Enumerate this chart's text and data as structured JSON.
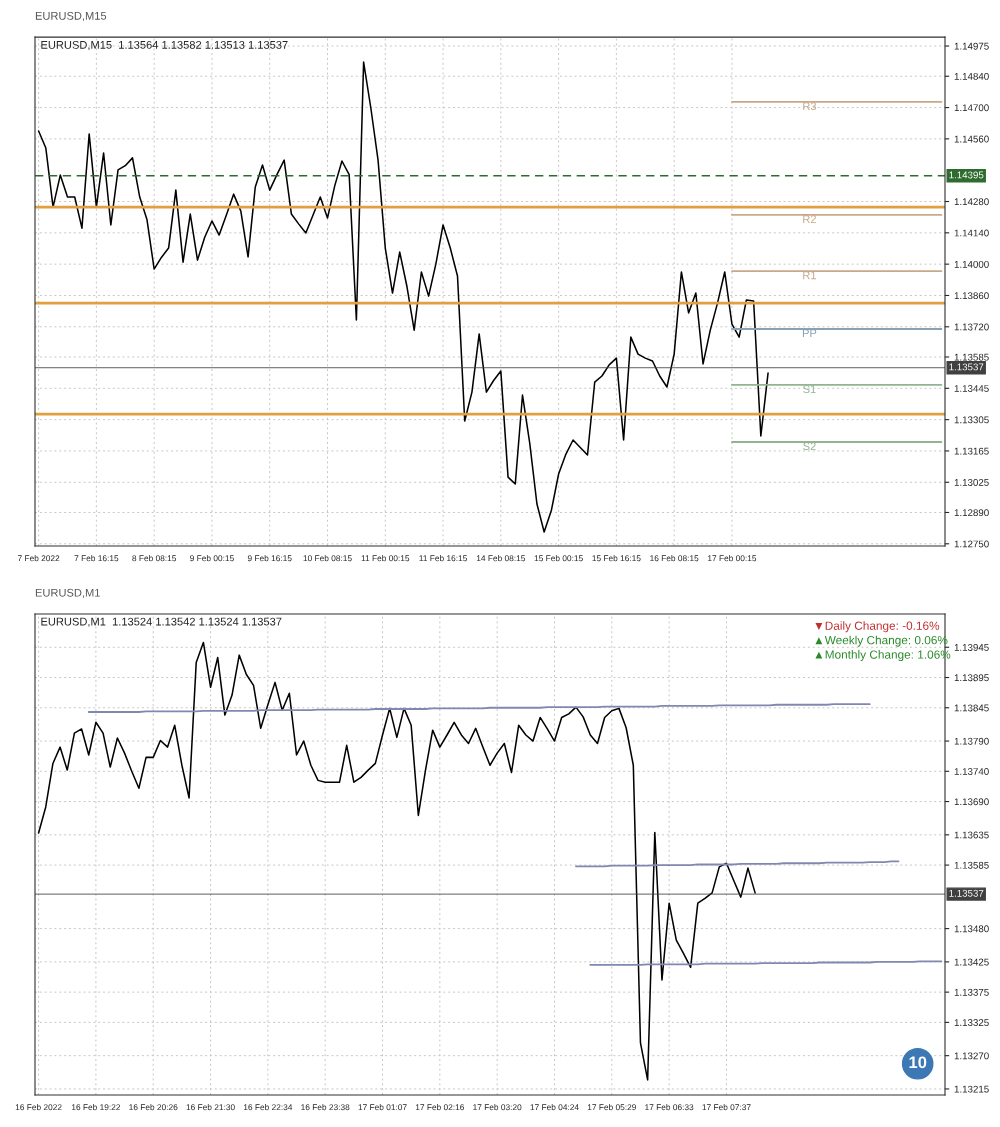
{
  "chart_data": [
    {
      "type": "line",
      "title": "EURUSD,M15  1.13564 1.13582 1.13513 1.13537",
      "subtitle": "EURUSD,M15",
      "categories": [
        "7 Feb 2022",
        null,
        null,
        null,
        null,
        null,
        null,
        null,
        "7 Feb 16:15",
        null,
        null,
        null,
        null,
        null,
        null,
        null,
        "8 Feb 08:15",
        null,
        null,
        null,
        null,
        null,
        null,
        null,
        "9 Feb 00:15",
        null,
        null,
        null,
        null,
        null,
        null,
        null,
        "9 Feb 16:15",
        null,
        null,
        null,
        null,
        null,
        null,
        null,
        "10 Feb 08:15",
        null,
        null,
        null,
        null,
        null,
        null,
        null,
        "11 Feb 00:15",
        null,
        null,
        null,
        null,
        null,
        null,
        null,
        "11 Feb 16:15",
        null,
        null,
        null,
        null,
        null,
        null,
        null,
        "14 Feb 08:15",
        null,
        null,
        null,
        null,
        null,
        null,
        null,
        "15 Feb 00:15",
        null,
        null,
        null,
        null,
        null,
        null,
        null,
        "15 Feb 16:15",
        null,
        null,
        null,
        null,
        null,
        null,
        null,
        "16 Feb 08:15",
        null,
        null,
        null,
        null,
        null,
        null,
        null,
        "17 Feb 00:15",
        null,
        null,
        null,
        null,
        null,
        null,
        null,
        null,
        null,
        null,
        null,
        null,
        null,
        null,
        null,
        null,
        null,
        null,
        null,
        null,
        null,
        null,
        null,
        null,
        null,
        null,
        null,
        null,
        null
      ],
      "ylim": [
        1.1274,
        1.15015
      ],
      "yticks": [
        {
          "value": 1.14975,
          "label": "1.14975"
        },
        {
          "value": 1.1484,
          "label": "1.14840"
        },
        {
          "value": 1.147,
          "label": "1.14700"
        },
        {
          "value": 1.1456,
          "label": "1.14560"
        },
        {
          "value": 1.1428,
          "label": "1.14280"
        },
        {
          "value": 1.1414,
          "label": "1.14140"
        },
        {
          "value": 1.14,
          "label": "1.14000"
        },
        {
          "value": 1.1386,
          "label": "1.13860"
        },
        {
          "value": 1.1372,
          "label": "1.13720"
        },
        {
          "value": 1.13585,
          "label": "1.13585"
        },
        {
          "value": 1.13445,
          "label": "1.13445"
        },
        {
          "value": 1.13305,
          "label": "1.13305"
        },
        {
          "value": 1.13165,
          "label": "1.13165"
        },
        {
          "value": 1.13025,
          "label": "1.13025"
        },
        {
          "value": 1.1289,
          "label": "1.12890"
        },
        {
          "value": 1.1275,
          "label": "1.12750"
        }
      ],
      "grid": true,
      "series": [
        {
          "color": "#000000",
          "values": [
            1.14595,
            1.14519,
            1.14255,
            1.14398,
            1.143,
            1.143,
            1.14161,
            1.14582,
            1.14255,
            1.14497,
            1.14175,
            1.14421,
            1.1444,
            1.14475,
            1.143,
            1.142,
            1.13978,
            1.1403,
            1.14072,
            1.14331,
            1.14009,
            1.14224,
            1.14018,
            1.1412,
            1.14193,
            1.1413,
            1.1422,
            1.14313,
            1.14237,
            1.14032,
            1.14345,
            1.14443,
            1.14331,
            1.144,
            1.14465,
            1.14224,
            1.1418,
            1.14139,
            1.1422,
            1.143,
            1.14206,
            1.1435,
            1.14461,
            1.144,
            1.1375,
            1.14903,
            1.14698,
            1.14465,
            1.14072,
            1.13871,
            1.14054,
            1.139,
            1.13705,
            1.13965,
            1.13857,
            1.14,
            1.14175,
            1.14072,
            1.13947,
            1.13299,
            1.13428,
            1.13688,
            1.13428,
            1.1348,
            1.13522,
            1.13048,
            1.13017,
            1.13415,
            1.132,
            1.12928,
            1.12803,
            1.129,
            1.13062,
            1.1315,
            1.13214,
            1.1318,
            1.13147,
            1.13473,
            1.135,
            1.1355,
            1.1358,
            1.13214,
            1.13674,
            1.13598,
            1.1358,
            1.13567,
            1.135,
            1.13451,
            1.13598,
            1.13965,
            1.13782,
            1.13871,
            1.13554,
            1.13705,
            1.13826,
            1.13965,
            1.13732,
            1.13674,
            1.1384,
            1.13835,
            1.13232,
            1.13513,
            null,
            null,
            null,
            null,
            null,
            null,
            null,
            null,
            null,
            null,
            null,
            null,
            null,
            null,
            null,
            null,
            null,
            null,
            null,
            null,
            null,
            null,
            null,
            null
          ]
        },
        {
          "name": "R3",
          "color": "#c9a88a",
          "values": [
            null,
            null,
            null,
            null,
            null,
            null,
            null,
            null,
            null,
            null,
            null,
            null,
            null,
            null,
            null,
            null,
            null,
            null,
            null,
            null,
            null,
            null,
            null,
            null,
            null,
            null,
            null,
            null,
            null,
            null,
            null,
            null,
            null,
            null,
            null,
            null,
            null,
            null,
            null,
            null,
            null,
            null,
            null,
            null,
            null,
            null,
            null,
            null,
            null,
            null,
            null,
            null,
            null,
            null,
            null,
            null,
            null,
            null,
            null,
            null,
            null,
            null,
            null,
            null,
            null,
            null,
            null,
            null,
            null,
            null,
            null,
            null,
            null,
            null,
            null,
            null,
            null,
            null,
            null,
            null,
            null,
            null,
            null,
            null,
            null,
            null,
            null,
            null,
            null,
            null,
            null,
            null,
            null,
            null,
            null,
            null,
            1.14725,
            1.14725,
            1.14725,
            1.14725,
            1.14725,
            1.14725,
            1.14725,
            1.14725,
            1.14725,
            1.14725,
            1.14725,
            1.14725,
            1.14725,
            1.14725,
            1.14725,
            1.14725,
            1.14725,
            1.14725,
            1.14725,
            1.14725,
            1.14725,
            1.14725,
            1.14725,
            1.14725,
            1.14725,
            1.14725,
            1.14725,
            1.14725,
            1.14725,
            1.14725
          ]
        },
        {
          "name": "R2",
          "color": "#c9a88a",
          "values": [
            null,
            null,
            null,
            null,
            null,
            null,
            null,
            null,
            null,
            null,
            null,
            null,
            null,
            null,
            null,
            null,
            null,
            null,
            null,
            null,
            null,
            null,
            null,
            null,
            null,
            null,
            null,
            null,
            null,
            null,
            null,
            null,
            null,
            null,
            null,
            null,
            null,
            null,
            null,
            null,
            null,
            null,
            null,
            null,
            null,
            null,
            null,
            null,
            null,
            null,
            null,
            null,
            null,
            null,
            null,
            null,
            null,
            null,
            null,
            null,
            null,
            null,
            null,
            null,
            null,
            null,
            null,
            null,
            null,
            null,
            null,
            null,
            null,
            null,
            null,
            null,
            null,
            null,
            null,
            null,
            null,
            null,
            null,
            null,
            null,
            null,
            null,
            null,
            null,
            null,
            null,
            null,
            null,
            null,
            null,
            null,
            1.1422,
            1.1422,
            1.1422,
            1.1422,
            1.1422,
            1.1422,
            1.1422,
            1.1422,
            1.1422,
            1.1422,
            1.1422,
            1.1422,
            1.1422,
            1.1422,
            1.1422,
            1.1422,
            1.1422,
            1.1422,
            1.1422,
            1.1422,
            1.1422,
            1.1422,
            1.1422,
            1.1422,
            1.1422,
            1.1422,
            1.1422,
            1.1422,
            1.1422,
            1.1422
          ]
        },
        {
          "name": "R1",
          "color": "#c9a88a",
          "values": [
            null,
            null,
            null,
            null,
            null,
            null,
            null,
            null,
            null,
            null,
            null,
            null,
            null,
            null,
            null,
            null,
            null,
            null,
            null,
            null,
            null,
            null,
            null,
            null,
            null,
            null,
            null,
            null,
            null,
            null,
            null,
            null,
            null,
            null,
            null,
            null,
            null,
            null,
            null,
            null,
            null,
            null,
            null,
            null,
            null,
            null,
            null,
            null,
            null,
            null,
            null,
            null,
            null,
            null,
            null,
            null,
            null,
            null,
            null,
            null,
            null,
            null,
            null,
            null,
            null,
            null,
            null,
            null,
            null,
            null,
            null,
            null,
            null,
            null,
            null,
            null,
            null,
            null,
            null,
            null,
            null,
            null,
            null,
            null,
            null,
            null,
            null,
            null,
            null,
            null,
            null,
            null,
            null,
            null,
            null,
            null,
            1.13969,
            1.13969,
            1.13969,
            1.13969,
            1.13969,
            1.13969,
            1.13969,
            1.13969,
            1.13969,
            1.13969,
            1.13969,
            1.13969,
            1.13969,
            1.13969,
            1.13969,
            1.13969,
            1.13969,
            1.13969,
            1.13969,
            1.13969,
            1.13969,
            1.13969,
            1.13969,
            1.13969,
            1.13969,
            1.13969,
            1.13969,
            1.13969,
            1.13969,
            1.13969
          ]
        },
        {
          "name": "PP",
          "color": "#8aa0b4",
          "values": [
            null,
            null,
            null,
            null,
            null,
            null,
            null,
            null,
            null,
            null,
            null,
            null,
            null,
            null,
            null,
            null,
            null,
            null,
            null,
            null,
            null,
            null,
            null,
            null,
            null,
            null,
            null,
            null,
            null,
            null,
            null,
            null,
            null,
            null,
            null,
            null,
            null,
            null,
            null,
            null,
            null,
            null,
            null,
            null,
            null,
            null,
            null,
            null,
            null,
            null,
            null,
            null,
            null,
            null,
            null,
            null,
            null,
            null,
            null,
            null,
            null,
            null,
            null,
            null,
            null,
            null,
            null,
            null,
            null,
            null,
            null,
            null,
            null,
            null,
            null,
            null,
            null,
            null,
            null,
            null,
            null,
            null,
            null,
            null,
            null,
            null,
            null,
            null,
            null,
            null,
            null,
            null,
            null,
            null,
            null,
            null,
            1.1371,
            1.1371,
            1.1371,
            1.1371,
            1.1371,
            1.1371,
            1.1371,
            1.1371,
            1.1371,
            1.1371,
            1.1371,
            1.1371,
            1.1371,
            1.1371,
            1.1371,
            1.1371,
            1.1371,
            1.1371,
            1.1371,
            1.1371,
            1.1371,
            1.1371,
            1.1371,
            1.1371,
            1.1371,
            1.1371,
            1.1371,
            1.1371,
            1.1371,
            1.1371
          ]
        },
        {
          "name": "S1",
          "color": "#93b393",
          "values": [
            null,
            null,
            null,
            null,
            null,
            null,
            null,
            null,
            null,
            null,
            null,
            null,
            null,
            null,
            null,
            null,
            null,
            null,
            null,
            null,
            null,
            null,
            null,
            null,
            null,
            null,
            null,
            null,
            null,
            null,
            null,
            null,
            null,
            null,
            null,
            null,
            null,
            null,
            null,
            null,
            null,
            null,
            null,
            null,
            null,
            null,
            null,
            null,
            null,
            null,
            null,
            null,
            null,
            null,
            null,
            null,
            null,
            null,
            null,
            null,
            null,
            null,
            null,
            null,
            null,
            null,
            null,
            null,
            null,
            null,
            null,
            null,
            null,
            null,
            null,
            null,
            null,
            null,
            null,
            null,
            null,
            null,
            null,
            null,
            null,
            null,
            null,
            null,
            null,
            null,
            null,
            null,
            null,
            null,
            null,
            null,
            1.1346,
            1.1346,
            1.1346,
            1.1346,
            1.1346,
            1.1346,
            1.1346,
            1.1346,
            1.1346,
            1.1346,
            1.1346,
            1.1346,
            1.1346,
            1.1346,
            1.1346,
            1.1346,
            1.1346,
            1.1346,
            1.1346,
            1.1346,
            1.1346,
            1.1346,
            1.1346,
            1.1346,
            1.1346,
            1.1346,
            1.1346,
            1.1346,
            1.1346,
            1.1346
          ]
        },
        {
          "name": "S2",
          "color": "#93b393",
          "values": [
            null,
            null,
            null,
            null,
            null,
            null,
            null,
            null,
            null,
            null,
            null,
            null,
            null,
            null,
            null,
            null,
            null,
            null,
            null,
            null,
            null,
            null,
            null,
            null,
            null,
            null,
            null,
            null,
            null,
            null,
            null,
            null,
            null,
            null,
            null,
            null,
            null,
            null,
            null,
            null,
            null,
            null,
            null,
            null,
            null,
            null,
            null,
            null,
            null,
            null,
            null,
            null,
            null,
            null,
            null,
            null,
            null,
            null,
            null,
            null,
            null,
            null,
            null,
            null,
            null,
            null,
            null,
            null,
            null,
            null,
            null,
            null,
            null,
            null,
            null,
            null,
            null,
            null,
            null,
            null,
            null,
            null,
            null,
            null,
            null,
            null,
            null,
            null,
            null,
            null,
            null,
            null,
            null,
            null,
            null,
            null,
            1.13205,
            1.13205,
            1.13205,
            1.13205,
            1.13205,
            1.13205,
            1.13205,
            1.13205,
            1.13205,
            1.13205,
            1.13205,
            1.13205,
            1.13205,
            1.13205,
            1.13205,
            1.13205,
            1.13205,
            1.13205,
            1.13205,
            1.13205,
            1.13205,
            1.13205,
            1.13205,
            1.13205,
            1.13205,
            1.13205,
            1.13205,
            1.13205,
            1.13205,
            1.13205
          ]
        }
      ],
      "ref_lines": [
        {
          "axis": "y",
          "value": 1.14255,
          "color": "#e0a040"
        },
        {
          "axis": "y",
          "value": 1.13826,
          "color": "#e0a040"
        },
        {
          "axis": "y",
          "value": 1.1333,
          "color": "#e0a040"
        },
        {
          "axis": "y",
          "value": 1.14395,
          "label": "1.14395",
          "color": "#2e6b2e",
          "line_style": "dashed"
        },
        {
          "axis": "y",
          "value": 1.13537,
          "label": "1.13537",
          "color": "#404040"
        }
      ]
    },
    {
      "type": "line",
      "title": "EURUSD,M1  1.13524 1.13542 1.13524 1.13537",
      "subtitle": "EURUSD,M1",
      "categories": [
        "16 Feb 2022",
        null,
        null,
        null,
        null,
        null,
        null,
        null,
        "16 Feb 19:22",
        null,
        null,
        null,
        null,
        null,
        null,
        null,
        "16 Feb 20:26",
        null,
        null,
        null,
        null,
        null,
        null,
        null,
        "16 Feb 21:30",
        null,
        null,
        null,
        null,
        null,
        null,
        null,
        "16 Feb 22:34",
        null,
        null,
        null,
        null,
        null,
        null,
        null,
        "16 Feb 23:38",
        null,
        null,
        null,
        null,
        null,
        null,
        null,
        "17 Feb 01:07",
        null,
        null,
        null,
        null,
        null,
        null,
        null,
        "17 Feb 02:16",
        null,
        null,
        null,
        null,
        null,
        null,
        null,
        "17 Feb 03:20",
        null,
        null,
        null,
        null,
        null,
        null,
        null,
        "17 Feb 04:24",
        null,
        null,
        null,
        null,
        null,
        null,
        null,
        "17 Feb 05:29",
        null,
        null,
        null,
        null,
        null,
        null,
        null,
        "17 Feb 06:33",
        null,
        null,
        null,
        null,
        null,
        null,
        null,
        "17 Feb 07:37",
        null,
        null,
        null,
        null,
        null,
        null,
        null,
        null,
        null,
        null,
        null,
        null,
        null,
        null,
        null,
        null,
        null,
        null,
        null,
        null,
        null,
        null,
        null,
        null,
        null,
        null,
        null,
        null,
        null,
        null
      ],
      "ylim": [
        1.13205,
        1.14
      ],
      "yticks": [
        {
          "value": 1.13945,
          "label": "1.13945"
        },
        {
          "value": 1.13895,
          "label": "1.13895"
        },
        {
          "value": 1.13845,
          "label": "1.13845"
        },
        {
          "value": 1.1379,
          "label": "1.13790"
        },
        {
          "value": 1.1374,
          "label": "1.13740"
        },
        {
          "value": 1.1369,
          "label": "1.13690"
        },
        {
          "value": 1.13635,
          "label": "1.13635"
        },
        {
          "value": 1.13585,
          "label": "1.13585"
        },
        {
          "value": 1.1348,
          "label": "1.13480"
        },
        {
          "value": 1.13425,
          "label": "1.13425"
        },
        {
          "value": 1.13375,
          "label": "1.13375"
        },
        {
          "value": 1.13325,
          "label": "1.13325"
        },
        {
          "value": 1.1327,
          "label": "1.13270"
        },
        {
          "value": 1.13215,
          "label": "1.13215"
        }
      ],
      "grid": true,
      "series": [
        {
          "color": "#000000",
          "values": [
            1.13638,
            1.13681,
            1.13753,
            1.1378,
            1.13742,
            1.13803,
            1.1381,
            1.13767,
            1.13821,
            1.13803,
            1.13747,
            1.13795,
            1.1377,
            1.1374,
            1.13712,
            1.13763,
            1.13763,
            1.13791,
            1.1378,
            1.13816,
            1.1375,
            1.13696,
            1.1392,
            1.13953,
            1.13879,
            1.13928,
            1.13833,
            1.13866,
            1.13932,
            1.139,
            1.13882,
            1.13811,
            1.1385,
            1.13887,
            1.13841,
            1.13869,
            1.13767,
            1.1379,
            1.1375,
            1.13725,
            1.13722,
            1.13722,
            1.13722,
            1.13783,
            1.13722,
            1.1373,
            1.13742,
            1.13753,
            1.138,
            1.13844,
            1.13796,
            1.13844,
            1.13816,
            1.13667,
            1.13742,
            1.13808,
            1.1378,
            1.138,
            1.13821,
            1.138,
            1.13786,
            1.13811,
            1.1378,
            1.1375,
            1.1377,
            1.13786,
            1.13738,
            1.13816,
            1.138,
            1.1379,
            1.13829,
            1.1381,
            1.1379,
            1.13829,
            1.13835,
            1.13846,
            1.1383,
            1.138,
            1.13786,
            1.13829,
            1.1384,
            1.13844,
            1.13812,
            1.1375,
            1.13291,
            1.1323,
            1.13639,
            1.13395,
            1.13522,
            1.13461,
            1.13439,
            1.13416,
            1.13522,
            1.1353,
            1.13539,
            1.13582,
            1.13588,
            1.1356,
            1.13532,
            1.1358,
            1.13539,
            null,
            null,
            null,
            null,
            null,
            null,
            null,
            null,
            null,
            null,
            null,
            null,
            null,
            null,
            null,
            null,
            null,
            null,
            null,
            null,
            null,
            null,
            null,
            null,
            null,
            null
          ]
        },
        {
          "color": "#8088b0",
          "values": [
            null,
            null,
            null,
            null,
            null,
            null,
            null,
            1.13838,
            1.13838,
            1.13838,
            1.13838,
            1.13838,
            1.13838,
            1.13838,
            1.13838,
            1.13839,
            1.13839,
            1.13839,
            1.13839,
            1.13839,
            1.13839,
            1.13839,
            1.13839,
            1.1384,
            1.1384,
            1.1384,
            1.1384,
            1.1384,
            1.1384,
            1.1384,
            1.1384,
            1.13841,
            1.13841,
            1.13841,
            1.13841,
            1.13841,
            1.13841,
            1.13841,
            1.13841,
            1.13842,
            1.13842,
            1.13842,
            1.13842,
            1.13842,
            1.13842,
            1.13842,
            1.13842,
            1.13843,
            1.13843,
            1.13843,
            1.13843,
            1.13843,
            1.13843,
            1.13843,
            1.13843,
            1.13844,
            1.13844,
            1.13844,
            1.13844,
            1.13844,
            1.13844,
            1.13844,
            1.13844,
            1.13845,
            1.13845,
            1.13845,
            1.13845,
            1.13845,
            1.13845,
            1.13845,
            1.13845,
            1.13846,
            1.13846,
            1.13846,
            1.13846,
            1.13846,
            1.13846,
            1.13846,
            1.13846,
            1.13847,
            1.13847,
            1.13847,
            1.13847,
            1.13847,
            1.13847,
            1.13847,
            1.13847,
            1.13848,
            1.13848,
            1.13848,
            1.13848,
            1.13848,
            1.13848,
            1.13848,
            1.13848,
            1.13849,
            1.13849,
            1.13849,
            1.13849,
            1.13849,
            1.13849,
            1.13849,
            1.13849,
            1.1385,
            1.1385,
            1.1385,
            1.1385,
            1.1385,
            1.1385,
            1.1385,
            1.1385,
            1.13851,
            1.13851,
            1.13851,
            1.13851,
            1.13851,
            1.13851,
            null,
            null,
            null,
            null,
            null,
            null,
            null,
            null,
            null,
            null
          ]
        },
        {
          "color": "#8088b0",
          "values": [
            null,
            null,
            null,
            null,
            null,
            null,
            null,
            null,
            null,
            null,
            null,
            null,
            null,
            null,
            null,
            null,
            null,
            null,
            null,
            null,
            null,
            null,
            null,
            null,
            null,
            null,
            null,
            null,
            null,
            null,
            null,
            null,
            null,
            null,
            null,
            null,
            null,
            null,
            null,
            null,
            null,
            null,
            null,
            null,
            null,
            null,
            null,
            null,
            null,
            null,
            null,
            null,
            null,
            null,
            null,
            null,
            null,
            null,
            null,
            null,
            null,
            null,
            null,
            null,
            null,
            null,
            null,
            null,
            null,
            null,
            null,
            null,
            null,
            null,
            null,
            1.13583,
            1.13583,
            1.13583,
            1.13583,
            1.13583,
            1.13584,
            1.13584,
            1.13584,
            1.13584,
            1.13584,
            1.13584,
            1.13585,
            1.13585,
            1.13585,
            1.13585,
            1.13585,
            1.13585,
            1.13586,
            1.13586,
            1.13586,
            1.13586,
            1.13586,
            1.13586,
            1.13587,
            1.13587,
            1.13587,
            1.13587,
            1.13587,
            1.13587,
            1.13588,
            1.13588,
            1.13588,
            1.13588,
            1.13588,
            1.13588,
            1.13589,
            1.13589,
            1.13589,
            1.13589,
            1.13589,
            1.13589,
            1.1359,
            1.1359,
            1.1359,
            1.13591,
            1.13591,
            null,
            null,
            null,
            null,
            null,
            null
          ]
        },
        {
          "color": "#8088b0",
          "values": [
            null,
            null,
            null,
            null,
            null,
            null,
            null,
            null,
            null,
            null,
            null,
            null,
            null,
            null,
            null,
            null,
            null,
            null,
            null,
            null,
            null,
            null,
            null,
            null,
            null,
            null,
            null,
            null,
            null,
            null,
            null,
            null,
            null,
            null,
            null,
            null,
            null,
            null,
            null,
            null,
            null,
            null,
            null,
            null,
            null,
            null,
            null,
            null,
            null,
            null,
            null,
            null,
            null,
            null,
            null,
            null,
            null,
            null,
            null,
            null,
            null,
            null,
            null,
            null,
            null,
            null,
            null,
            null,
            null,
            null,
            null,
            null,
            null,
            null,
            null,
            null,
            null,
            1.1342,
            1.1342,
            1.1342,
            1.1342,
            1.1342,
            1.1342,
            1.1342,
            1.1342,
            1.13421,
            1.13421,
            1.13421,
            1.13421,
            1.13421,
            1.13421,
            1.13421,
            1.13421,
            1.13422,
            1.13422,
            1.13422,
            1.13422,
            1.13422,
            1.13422,
            1.13422,
            1.13422,
            1.13423,
            1.13423,
            1.13423,
            1.13423,
            1.13423,
            1.13423,
            1.13423,
            1.13423,
            1.13424,
            1.13424,
            1.13424,
            1.13424,
            1.13424,
            1.13424,
            1.13424,
            1.13424,
            1.13425,
            1.13425,
            1.13425,
            1.13425,
            1.13425,
            1.13425,
            1.13426,
            1.13426,
            1.13426,
            1.13426
          ]
        }
      ],
      "ref_lines": [
        {
          "axis": "y",
          "value": 1.13537,
          "label": "1.13537",
          "color": "#404040"
        }
      ],
      "annotations": [
        "▼Daily Change: -0.16%",
        "▲Weekly Change: 0.06%",
        "▲Monthly Change: 1.06%",
        "10"
      ]
    }
  ]
}
